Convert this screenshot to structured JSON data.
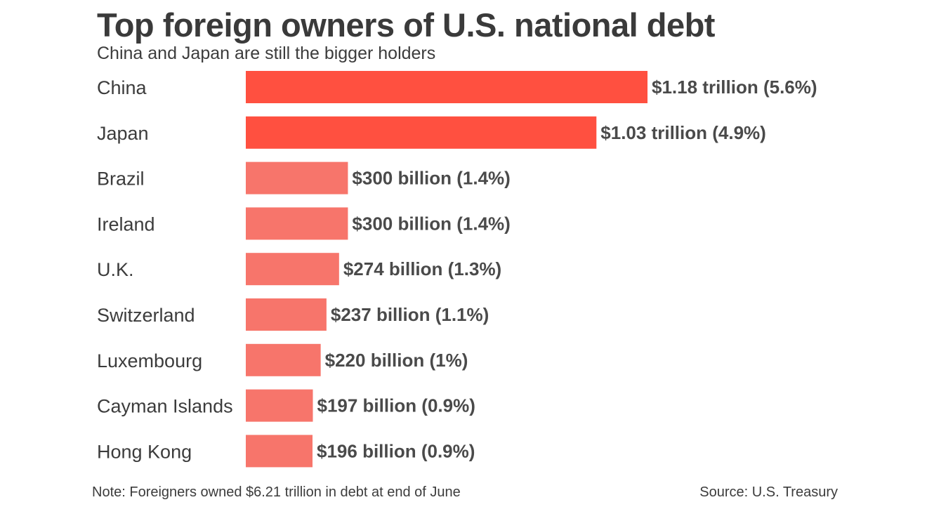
{
  "chart_data": {
    "type": "bar",
    "orientation": "horizontal",
    "title": "Top foreign owners of U.S. national debt",
    "subtitle": "China and Japan are still the bigger holders",
    "categories": [
      "China",
      "Japan",
      "Brazil",
      "Ireland",
      "U.K.",
      "Switzerland",
      "Luxembourg",
      "Cayman Islands",
      "Hong Kong"
    ],
    "values": [
      1180,
      1030,
      300,
      300,
      274,
      237,
      220,
      197,
      196
    ],
    "value_unit": "billion USD",
    "data_labels": [
      "$1.18 trillion (5.6%)",
      "$1.03 trillion (4.9%)",
      "$300 billion (1.4%)",
      "$300 billion (1.4%)",
      "$274 billion (1.3%)",
      "$237 billion (1.1%)",
      "$220 billion (1%)",
      "$197 billion (0.9%)",
      "$196 billion (0.9%)"
    ],
    "bar_colors": [
      "#ff5040",
      "#ff5040",
      "#f7756b",
      "#f7756b",
      "#f7756b",
      "#f7756b",
      "#f7756b",
      "#f7756b",
      "#f7756b"
    ],
    "xlim": [
      0,
      1180
    ],
    "grid": false,
    "legend": "none"
  },
  "note": "Note: Foreigners owned $6.21 trillion in debt at end of June",
  "source": "Source: U.S. Treasury"
}
